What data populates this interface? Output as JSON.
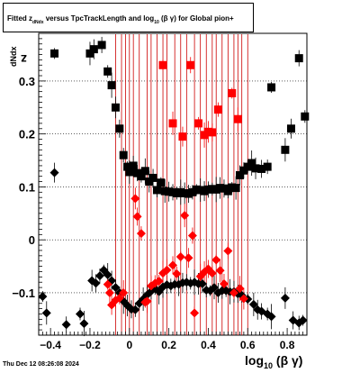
{
  "title": {
    "prefix": "Fitted  z",
    "subscript": "dNdx",
    "middle": "  versus TpcTrackLength and log",
    "log_base": "10",
    "suffix": " (β  γ) for Global pion+"
  },
  "axes": {
    "ylabel_main": "z",
    "ylabel_sub": "dNdx",
    "xlabel_main": "log",
    "xlabel_sub": "10",
    "xlabel_tail": "(β γ)"
  },
  "datestamp": "Thu Dec 12 08:26:08 2024",
  "colors": {
    "black_series": "#000000",
    "red_series": "#ff0000",
    "red_lines": "#cc0000",
    "grid": "#000000"
  },
  "chart_data": {
    "type": "scatter",
    "xlim": [
      -0.46,
      0.9
    ],
    "ylim": [
      -0.18,
      0.39
    ],
    "x_ticks": [
      -0.4,
      -0.2,
      0,
      0.2,
      0.4,
      0.6,
      0.8
    ],
    "x_tick_labels": [
      "−0.4",
      "−0.2",
      "0",
      "0.2",
      "0.4",
      "0.6",
      "0.8"
    ],
    "y_ticks": [
      -0.1,
      0,
      0.1,
      0.2,
      0.3
    ],
    "y_tick_labels": [
      "−0.1",
      "0",
      "0.1",
      "0.2",
      "0.3"
    ],
    "grid": "horizontal dotted at y ticks",
    "vertical_lines_x": [
      -0.07,
      -0.04,
      -0.02,
      0.0,
      0.02,
      0.05,
      0.09,
      0.11,
      0.14,
      0.17,
      0.19,
      0.23,
      0.26,
      0.29,
      0.33,
      0.36,
      0.39,
      0.42,
      0.44,
      0.47,
      0.5,
      0.53,
      0.55,
      0.57,
      0.6
    ],
    "series": [
      {
        "color": "black",
        "marker": "square",
        "points": [
          [
            -0.38,
            0.352
          ],
          [
            -0.2,
            0.352
          ],
          [
            -0.18,
            0.36
          ],
          [
            -0.14,
            0.368
          ],
          [
            -0.11,
            0.318
          ],
          [
            -0.09,
            0.292
          ],
          [
            -0.07,
            0.25
          ],
          [
            -0.05,
            0.21
          ],
          [
            -0.03,
            0.16
          ],
          [
            -0.01,
            0.138
          ],
          [
            0.0,
            0.128
          ],
          [
            0.02,
            0.14
          ],
          [
            0.04,
            0.126
          ],
          [
            0.06,
            0.12
          ],
          [
            0.08,
            0.13
          ],
          [
            0.1,
            0.11
          ],
          [
            0.12,
            0.117
          ],
          [
            0.14,
            0.094
          ],
          [
            0.16,
            0.108
          ],
          [
            0.18,
            0.092
          ],
          [
            0.2,
            0.091
          ],
          [
            0.22,
            0.09
          ],
          [
            0.24,
            0.088
          ],
          [
            0.26,
            0.09
          ],
          [
            0.28,
            0.088
          ],
          [
            0.3,
            0.087
          ],
          [
            0.32,
            0.09
          ],
          [
            0.34,
            0.095
          ],
          [
            0.36,
            0.094
          ],
          [
            0.38,
            0.092
          ],
          [
            0.4,
            0.095
          ],
          [
            0.42,
            0.096
          ],
          [
            0.44,
            0.095
          ],
          [
            0.46,
            0.098
          ],
          [
            0.48,
            0.097
          ],
          [
            0.5,
            0.092
          ],
          [
            0.52,
            0.099
          ],
          [
            0.54,
            0.098
          ],
          [
            0.56,
            0.122
          ],
          [
            0.58,
            0.131
          ],
          [
            0.6,
            0.138
          ],
          [
            0.62,
            0.145
          ],
          [
            0.64,
            0.135
          ],
          [
            0.67,
            0.134
          ],
          [
            0.7,
            0.138
          ],
          [
            0.72,
            0.288
          ],
          [
            0.79,
            0.17
          ],
          [
            0.82,
            0.21
          ],
          [
            0.86,
            0.343
          ],
          [
            0.89,
            0.233
          ]
        ]
      },
      {
        "color": "black",
        "marker": "diamond",
        "points": [
          [
            -0.44,
            -0.107
          ],
          [
            -0.42,
            -0.138
          ],
          [
            -0.38,
            0.127
          ],
          [
            -0.32,
            -0.16
          ],
          [
            -0.25,
            -0.14
          ],
          [
            -0.23,
            -0.158
          ],
          [
            -0.19,
            -0.077
          ],
          [
            -0.17,
            -0.082
          ],
          [
            -0.15,
            -0.068
          ],
          [
            -0.13,
            -0.057
          ],
          [
            -0.11,
            -0.066
          ],
          [
            -0.09,
            -0.077
          ],
          [
            -0.07,
            -0.09
          ],
          [
            -0.05,
            -0.1
          ],
          [
            -0.03,
            -0.116
          ],
          [
            -0.01,
            -0.124
          ],
          [
            0.01,
            -0.131
          ],
          [
            0.03,
            -0.132
          ],
          [
            0.05,
            -0.12
          ],
          [
            0.07,
            -0.112
          ],
          [
            0.09,
            -0.104
          ],
          [
            0.11,
            -0.097
          ],
          [
            0.13,
            -0.092
          ],
          [
            0.15,
            -0.098
          ],
          [
            0.17,
            -0.089
          ],
          [
            0.19,
            -0.085
          ],
          [
            0.21,
            -0.087
          ],
          [
            0.23,
            -0.084
          ],
          [
            0.25,
            -0.084
          ],
          [
            0.27,
            -0.081
          ],
          [
            0.29,
            -0.08
          ],
          [
            0.31,
            -0.082
          ],
          [
            0.33,
            -0.08
          ],
          [
            0.35,
            -0.083
          ],
          [
            0.37,
            -0.083
          ],
          [
            0.39,
            -0.095
          ],
          [
            0.41,
            -0.096
          ],
          [
            0.43,
            -0.09
          ],
          [
            0.45,
            -0.1
          ],
          [
            0.47,
            -0.096
          ],
          [
            0.49,
            -0.096
          ],
          [
            0.51,
            -0.098
          ],
          [
            0.53,
            -0.098
          ],
          [
            0.55,
            -0.102
          ],
          [
            0.57,
            -0.105
          ],
          [
            0.6,
            -0.112
          ],
          [
            0.63,
            -0.122
          ],
          [
            0.65,
            -0.132
          ],
          [
            0.67,
            -0.135
          ],
          [
            0.7,
            -0.14
          ],
          [
            0.72,
            -0.145
          ],
          [
            0.79,
            -0.11
          ],
          [
            0.83,
            -0.152
          ],
          [
            0.86,
            -0.157
          ],
          [
            0.88,
            -0.152
          ]
        ]
      },
      {
        "color": "red",
        "marker": "square",
        "points": [
          [
            0.17,
            0.33
          ],
          [
            0.22,
            0.22
          ],
          [
            0.27,
            0.195
          ],
          [
            0.31,
            0.33
          ],
          [
            0.35,
            0.22
          ],
          [
            0.38,
            0.198
          ],
          [
            0.4,
            0.204
          ],
          [
            0.42,
            0.203
          ],
          [
            0.45,
            0.246
          ],
          [
            0.52,
            0.277
          ],
          [
            0.55,
            0.228
          ]
        ]
      },
      {
        "color": "red",
        "marker": "diamond",
        "points": [
          [
            -0.11,
            -0.084
          ],
          [
            -0.1,
            -0.1
          ],
          [
            -0.09,
            -0.123
          ],
          [
            -0.07,
            -0.114
          ],
          [
            -0.05,
            -0.11
          ],
          [
            -0.03,
            -0.1
          ],
          [
            0.03,
            0.078
          ],
          [
            0.04,
            0.044
          ],
          [
            0.06,
            0.012
          ],
          [
            0.08,
            -0.118
          ],
          [
            0.09,
            -0.116
          ],
          [
            0.11,
            -0.087
          ],
          [
            0.13,
            -0.082
          ],
          [
            0.15,
            -0.078
          ],
          [
            0.17,
            -0.063
          ],
          [
            0.19,
            -0.057
          ],
          [
            0.22,
            -0.048
          ],
          [
            0.24,
            -0.064
          ],
          [
            0.26,
            -0.032
          ],
          [
            0.28,
            0.046
          ],
          [
            0.3,
            -0.034
          ],
          [
            0.32,
            0.008
          ],
          [
            0.33,
            -0.138
          ],
          [
            0.36,
            -0.069
          ],
          [
            0.38,
            -0.061
          ],
          [
            0.4,
            -0.055
          ],
          [
            0.42,
            -0.063
          ],
          [
            0.44,
            -0.038
          ],
          [
            0.46,
            -0.058
          ],
          [
            0.48,
            -0.083
          ],
          [
            0.5,
            -0.021
          ],
          [
            0.53,
            -0.1
          ],
          [
            0.56,
            -0.092
          ],
          [
            0.58,
            -0.111
          ]
        ]
      }
    ]
  }
}
